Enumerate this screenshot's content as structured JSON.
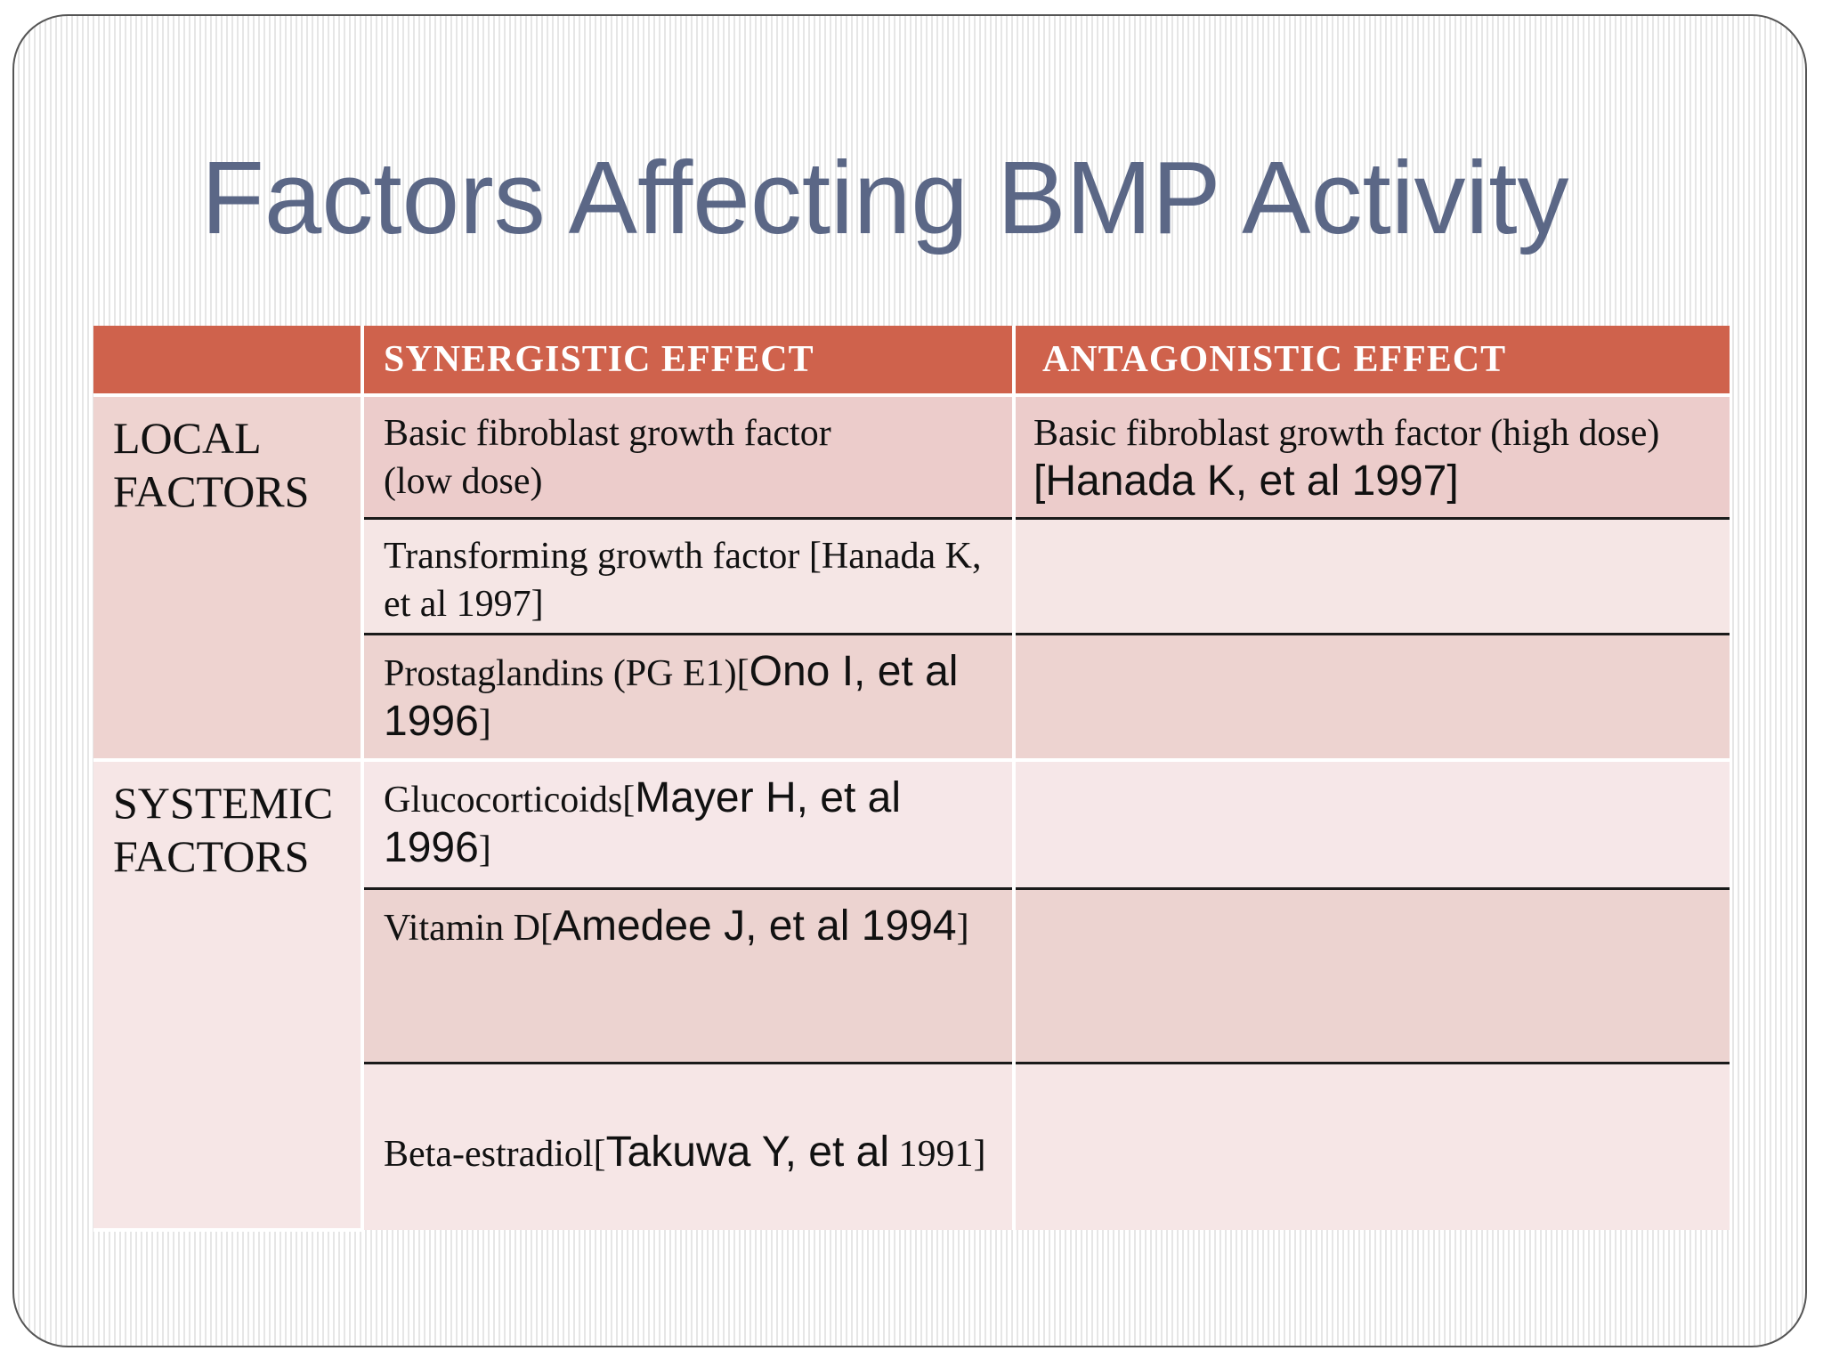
{
  "slide": {
    "title": "Factors Affecting BMP Activity"
  },
  "table": {
    "headers": [
      "",
      "SYNERGISTIC EFFECT",
      "ANTAGONISTIC EFFECT"
    ],
    "groups": [
      {
        "label_line1": "LOCAL",
        "label_line2": "FACTORS"
      },
      {
        "label_line1": "SYSTEMIC",
        "label_line2": "FACTORS"
      }
    ],
    "rows": [
      {
        "synergistic": {
          "text": "Basic fibroblast growth factor",
          "text2": "(low dose)"
        },
        "antagonistic": {
          "text": "Basic fibroblast growth factor (high dose) ",
          "citation": "[Hanada K, et al 1997]"
        }
      },
      {
        "synergistic": {
          "text": "Transforming growth factor [Hanada K, et al 1997]"
        },
        "antagonistic": {
          "text": ""
        }
      },
      {
        "synergistic": {
          "text": "Prostaglandins (PG E1)[",
          "citation": "Ono I, et al 1996",
          "close": "]"
        },
        "antagonistic": {
          "text": ""
        }
      },
      {
        "synergistic": {
          "text": "Glucocorticoids[",
          "citation": "Mayer H, et al 1996",
          "close": "]"
        },
        "antagonistic": {
          "text": ""
        }
      },
      {
        "synergistic": {
          "text": "Vitamin D[",
          "citation": "Amedee J, et al 1994",
          "close": "]"
        },
        "antagonistic": {
          "text": ""
        }
      },
      {
        "synergistic": {
          "text": "Beta-estradiol[",
          "citation": "Takuwa Y, et al",
          "close": " 1991]"
        },
        "antagonistic": {
          "text": ""
        }
      }
    ]
  },
  "colors": {
    "title": "#5b6786",
    "header_bg": "#cf624c",
    "row_dark": "#eccccb",
    "row_light": "#f5e6e5"
  }
}
